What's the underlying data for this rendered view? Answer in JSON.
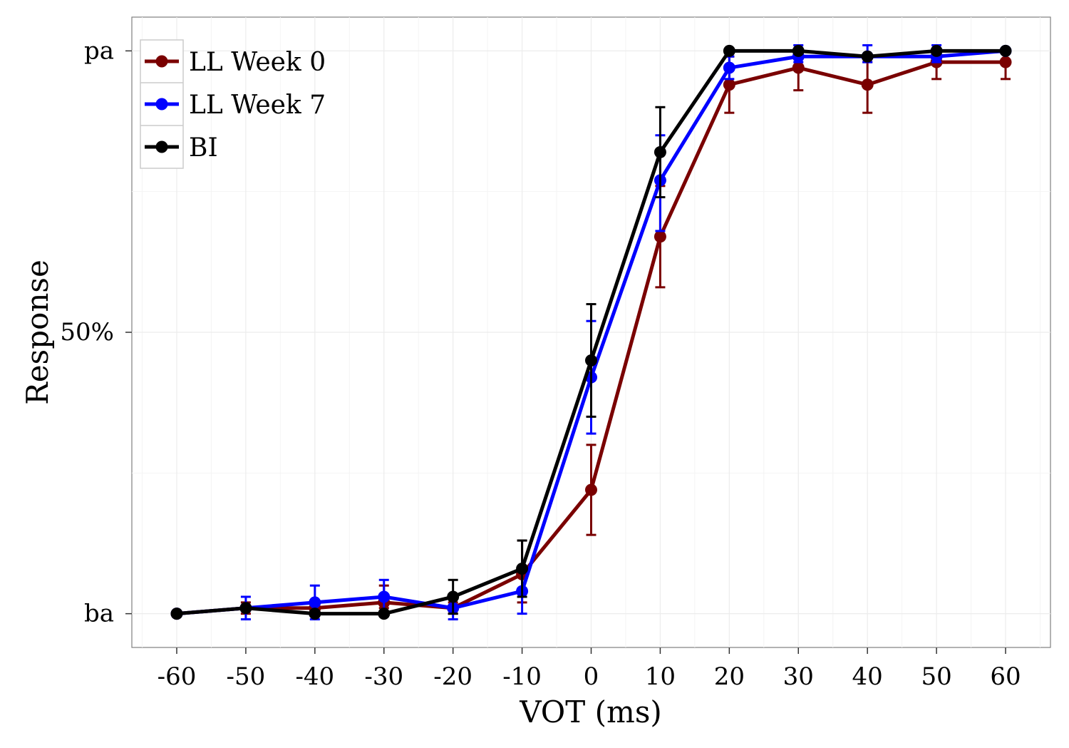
{
  "chart_data": {
    "type": "line",
    "title": "",
    "xlabel": "VOT (ms)",
    "ylabel": "Response",
    "x": [
      -60,
      -50,
      -40,
      -30,
      -20,
      -10,
      0,
      10,
      20,
      30,
      40,
      50,
      60
    ],
    "x_tick_labels": [
      "-60",
      "-50",
      "-40",
      "-30",
      "-20",
      "-10",
      "0",
      "10",
      "20",
      "30",
      "40",
      "50",
      "60"
    ],
    "xlim": [
      -66.5,
      66.5
    ],
    "ylim": [
      -0.06,
      1.06
    ],
    "y_ticks": [
      {
        "value": 0,
        "label": "ba"
      },
      {
        "value": 0.5,
        "label": "50%"
      },
      {
        "value": 1,
        "label": "pa"
      }
    ],
    "grid": true,
    "legend_position": "top-left",
    "series": [
      {
        "name": "LL Week 0",
        "color": "#7a0000",
        "values": [
          0,
          0.01,
          0.01,
          0.02,
          0.01,
          0.07,
          0.22,
          0.67,
          0.94,
          0.97,
          0.94,
          0.98,
          0.98
        ],
        "err_low": [
          0,
          0.0,
          0.0,
          0.01,
          0.0,
          0.02,
          0.14,
          0.58,
          0.89,
          0.93,
          0.89,
          0.95,
          0.95
        ],
        "err_high": [
          0,
          0.02,
          0.02,
          0.05,
          0.02,
          0.13,
          0.3,
          0.76,
          0.99,
          1.0,
          0.98,
          1.0,
          1.0
        ]
      },
      {
        "name": "LL Week 7",
        "color": "#0000ff",
        "values": [
          0,
          0.01,
          0.02,
          0.03,
          0.01,
          0.04,
          0.42,
          0.77,
          0.97,
          0.99,
          0.99,
          0.99,
          1.0
        ],
        "err_low": [
          0,
          -0.01,
          -0.01,
          0.0,
          -0.01,
          0.0,
          0.32,
          0.68,
          0.95,
          0.98,
          0.98,
          0.98,
          1.0
        ],
        "err_high": [
          0,
          0.03,
          0.05,
          0.06,
          0.03,
          0.08,
          0.52,
          0.85,
          0.99,
          1.01,
          1.01,
          1.01,
          1.0
        ]
      },
      {
        "name": "BI",
        "color": "#000000",
        "values": [
          0,
          0.01,
          0.0,
          0.0,
          0.03,
          0.08,
          0.45,
          0.82,
          1.0,
          1.0,
          0.99,
          1.0,
          1.0
        ],
        "err_low": [
          0,
          0.01,
          0.0,
          0.0,
          0.0,
          0.03,
          0.35,
          0.74,
          1.0,
          1.0,
          0.99,
          1.0,
          1.0
        ],
        "err_high": [
          0,
          0.01,
          0.0,
          0.0,
          0.06,
          0.13,
          0.55,
          0.9,
          1.0,
          1.0,
          0.99,
          1.0,
          1.0
        ]
      }
    ]
  }
}
